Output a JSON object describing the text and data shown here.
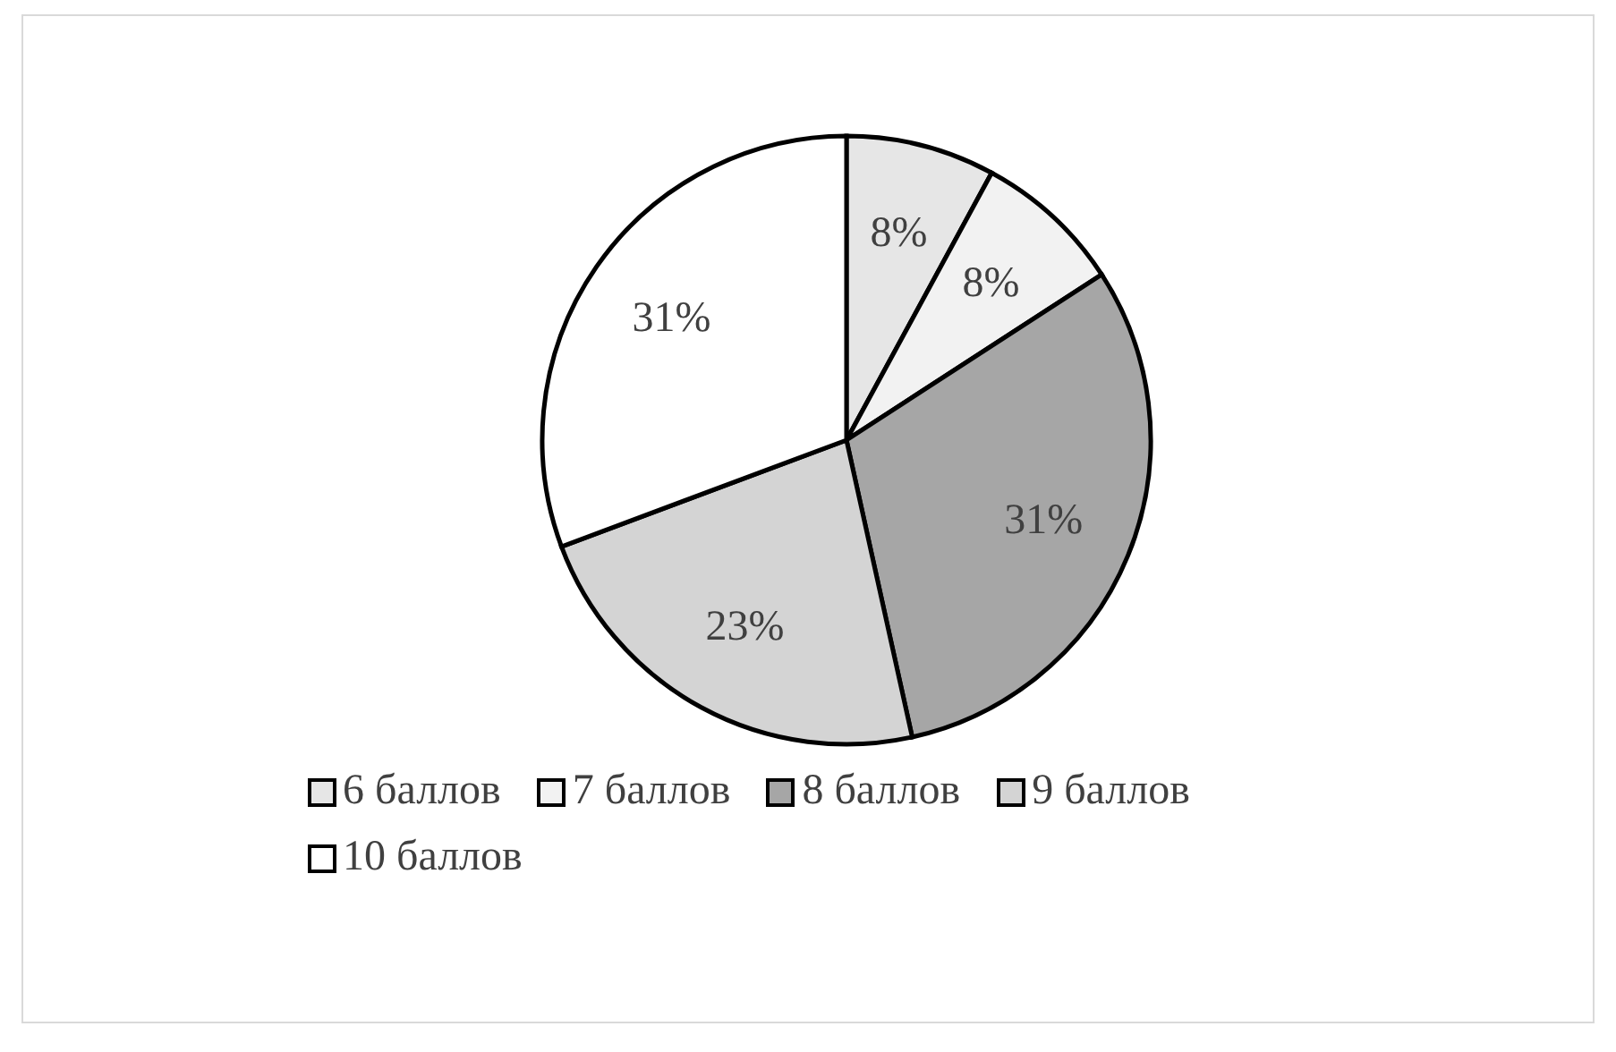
{
  "chart_data": {
    "type": "pie",
    "categories": [
      "6 баллов",
      "7 баллов",
      "8 баллов",
      "9 баллов",
      "10 баллов"
    ],
    "values": [
      8,
      8,
      31,
      23,
      31
    ],
    "colors": [
      "#e6e6e6",
      "#f2f2f2",
      "#a6a6a6",
      "#d4d4d4",
      "#ffffff"
    ],
    "value_labels": [
      "8%",
      "8%",
      "31%",
      "23%",
      "31%"
    ],
    "legend": "bottom"
  }
}
